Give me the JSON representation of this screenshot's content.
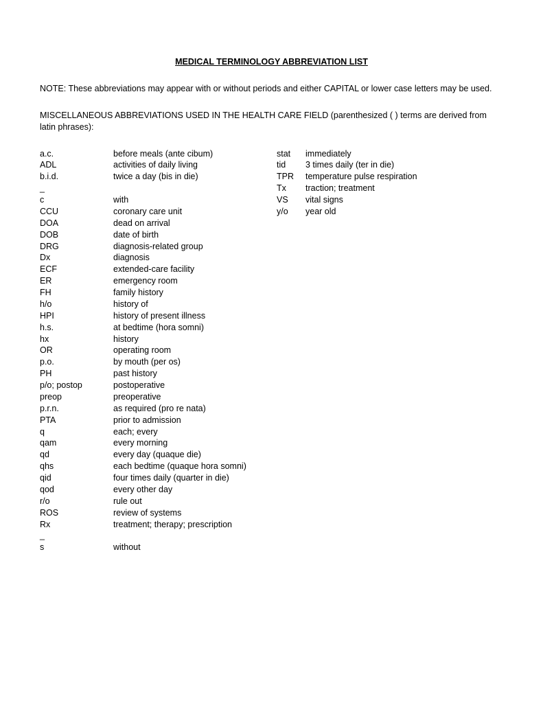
{
  "title": "MEDICAL TERMINOLOGY ABBREVIATION LIST",
  "note": "NOTE:  These abbreviations may appear with or without periods and either CAPITAL or  lower case letters may be used.",
  "subhead": "MISCELLANEOUS ABBREVIATIONS USED IN THE HEALTH CARE FIELD (parenthesized ( ) terms are derived from latin phrases):",
  "left": [
    {
      "a": "a.c.",
      "d": "before meals (ante cibum)"
    },
    {
      "a": "ADL",
      "d": "activities of daily living"
    },
    {
      "a": "b.i.d.",
      "d": "twice a day (bis in die)"
    },
    {
      "a": "_",
      "d": ""
    },
    {
      "a": "c",
      "d": "with"
    },
    {
      "a": "CCU",
      "d": "coronary care unit"
    },
    {
      "a": "DOA",
      "d": "dead on arrival"
    },
    {
      "a": "DOB",
      "d": "date of birth"
    },
    {
      "a": "DRG",
      "d": "diagnosis-related group"
    },
    {
      "a": "Dx",
      "d": "diagnosis"
    },
    {
      "a": "ECF",
      "d": "extended-care facility"
    },
    {
      "a": "ER",
      "d": "emergency room"
    },
    {
      "a": "FH",
      "d": "family history"
    },
    {
      "a": "h/o",
      "d": "history of"
    },
    {
      "a": "HPI",
      "d": "history of present illness"
    },
    {
      "a": "h.s.",
      "d": "at bedtime (hora somni)"
    },
    {
      "a": "hx",
      "d": "history"
    },
    {
      "a": "OR",
      "d": "operating room"
    },
    {
      "a": "p.o.",
      "d": "by mouth (per os)"
    },
    {
      "a": "PH",
      "d": "past history"
    },
    {
      "a": "p/o; postop",
      "d": "postoperative"
    },
    {
      "a": "preop",
      "d": "preoperative"
    },
    {
      "a": "p.r.n.",
      "d": "as required (pro re nata)"
    },
    {
      "a": "PTA",
      "d": "prior to admission"
    },
    {
      "a": "q",
      "d": "each; every"
    },
    {
      "a": "qam",
      "d": "every morning"
    },
    {
      "a": "qd",
      "d": "every day (quaque die)"
    },
    {
      "a": "qhs",
      "d": "each bedtime (quaque hora somni)"
    },
    {
      "a": "qid",
      "d": "four times daily (quarter in die)"
    },
    {
      "a": "qod",
      "d": "every other day"
    },
    {
      "a": "r/o",
      "d": "rule out"
    },
    {
      "a": "ROS",
      "d": "review of systems"
    },
    {
      "a": "Rx",
      "d": "treatment; therapy; prescription"
    },
    {
      "a": "_",
      "d": ""
    },
    {
      "a": "s",
      "d": "without"
    }
  ],
  "right": [
    {
      "a": "stat",
      "d": "immediately"
    },
    {
      "a": "tid",
      "d": "3 times daily (ter in die)"
    },
    {
      "a": "TPR",
      "d": "temperature pulse respiration"
    },
    {
      "a": "Tx",
      "d": "traction; treatment"
    },
    {
      "a": "VS",
      "d": "vital signs"
    },
    {
      "a": "y/o",
      "d": "year old"
    }
  ]
}
